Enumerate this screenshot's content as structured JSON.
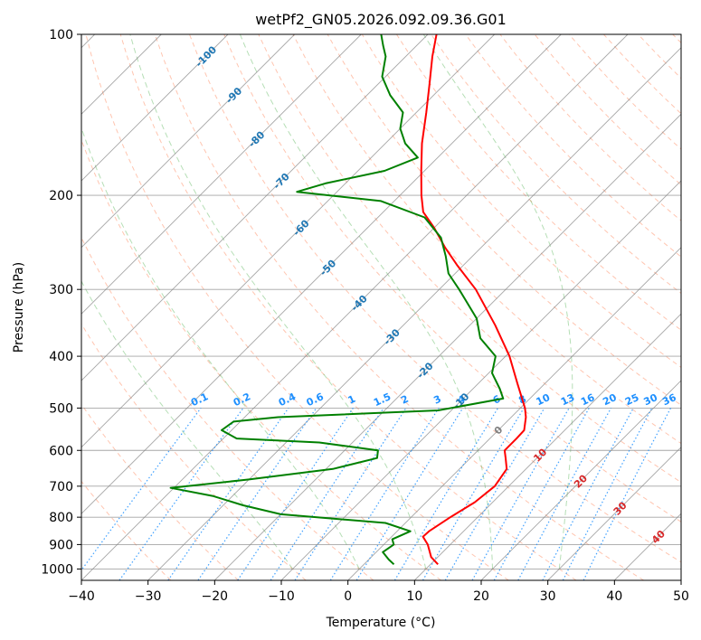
{
  "chart_data": {
    "type": "line",
    "subtype": "skew-T log-p diagram",
    "title": "wetPf2_GN05.2026.092.09.36.G01",
    "xlabel": "Temperature (°C)",
    "ylabel": "Pressure (hPa)",
    "xlim": [
      -40,
      50
    ],
    "ylim": [
      1050,
      100
    ],
    "y_scale": "log",
    "x_ticks": [
      -40,
      -30,
      -20,
      -10,
      0,
      10,
      20,
      30,
      40,
      50
    ],
    "x_tick_labels": [
      "−40",
      "−30",
      "−20",
      "−10",
      "0",
      "10",
      "20",
      "30",
      "40",
      "50"
    ],
    "y_ticks": [
      100,
      200,
      300,
      400,
      500,
      600,
      700,
      800,
      900,
      1000
    ],
    "y_tick_labels": [
      "100",
      "200",
      "300",
      "400",
      "500",
      "600",
      "700",
      "800",
      "900",
      "1000"
    ],
    "grid": true,
    "series": [
      {
        "color": "#ff0000",
        "points": [
          {
            "p": 980,
            "t": 11.1
          },
          {
            "p": 950,
            "t": 9.0
          },
          {
            "p": 900,
            "t": 6.6
          },
          {
            "p": 870,
            "t": 4.7
          },
          {
            "p": 850,
            "t": 4.8
          },
          {
            "p": 800,
            "t": 5.9
          },
          {
            "p": 750,
            "t": 7.3
          },
          {
            "p": 700,
            "t": 7.9
          },
          {
            "p": 650,
            "t": 7.1
          },
          {
            "p": 620,
            "t": 5.3
          },
          {
            "p": 600,
            "t": 4.0
          },
          {
            "p": 570,
            "t": 4.0
          },
          {
            "p": 550,
            "t": 3.9
          },
          {
            "p": 520,
            "t": 2.2
          },
          {
            "p": 500,
            "t": 0.7
          },
          {
            "p": 450,
            "t": -4.1
          },
          {
            "p": 400,
            "t": -9.4
          },
          {
            "p": 350,
            "t": -16.2
          },
          {
            "p": 300,
            "t": -24.5
          },
          {
            "p": 270,
            "t": -31.0
          },
          {
            "p": 250,
            "t": -35.5
          },
          {
            "p": 230,
            "t": -40.0
          },
          {
            "p": 215,
            "t": -44.0
          },
          {
            "p": 200,
            "t": -46.8
          },
          {
            "p": 180,
            "t": -50.5
          },
          {
            "p": 160,
            "t": -54.5
          },
          {
            "p": 140,
            "t": -58.5
          },
          {
            "p": 125,
            "t": -62.0
          },
          {
            "p": 110,
            "t": -66.0
          },
          {
            "p": 100,
            "t": -68.7
          }
        ]
      },
      {
        "color": "#008000",
        "points": [
          {
            "p": 980,
            "t": 4.5
          },
          {
            "p": 960,
            "t": 3.0
          },
          {
            "p": 930,
            "t": 1.0
          },
          {
            "p": 900,
            "t": 1.5
          },
          {
            "p": 880,
            "t": 0.5
          },
          {
            "p": 850,
            "t": 2.0
          },
          {
            "p": 820,
            "t": -3.0
          },
          {
            "p": 790,
            "t": -20.0
          },
          {
            "p": 760,
            "t": -27.0
          },
          {
            "p": 730,
            "t": -33.0
          },
          {
            "p": 705,
            "t": -40.5
          },
          {
            "p": 680,
            "t": -30.0
          },
          {
            "p": 650,
            "t": -19.0
          },
          {
            "p": 620,
            "t": -14.0
          },
          {
            "p": 600,
            "t": -15.0
          },
          {
            "p": 580,
            "t": -25.0
          },
          {
            "p": 570,
            "t": -38.0
          },
          {
            "p": 550,
            "t": -41.5
          },
          {
            "p": 530,
            "t": -41.0
          },
          {
            "p": 520,
            "t": -35.0
          },
          {
            "p": 505,
            "t": -12.0
          },
          {
            "p": 480,
            "t": -4.0
          },
          {
            "p": 460,
            "t": -6.0
          },
          {
            "p": 430,
            "t": -9.5
          },
          {
            "p": 400,
            "t": -11.5
          },
          {
            "p": 370,
            "t": -16.5
          },
          {
            "p": 340,
            "t": -20.0
          },
          {
            "p": 300,
            "t": -27.0
          },
          {
            "p": 280,
            "t": -31.0
          },
          {
            "p": 260,
            "t": -34.0
          },
          {
            "p": 240,
            "t": -37.5
          },
          {
            "p": 220,
            "t": -43.0
          },
          {
            "p": 205,
            "t": -52.0
          },
          {
            "p": 197,
            "t": -66.0
          },
          {
            "p": 190,
            "t": -63.0
          },
          {
            "p": 180,
            "t": -56.0
          },
          {
            "p": 170,
            "t": -53.0
          },
          {
            "p": 160,
            "t": -57.0
          },
          {
            "p": 150,
            "t": -60.0
          },
          {
            "p": 140,
            "t": -62.0
          },
          {
            "p": 130,
            "t": -66.5
          },
          {
            "p": 120,
            "t": -70.5
          },
          {
            "p": 110,
            "t": -73.0
          },
          {
            "p": 105,
            "t": -75.0
          },
          {
            "p": 100,
            "t": -77.0
          }
        ]
      }
    ],
    "isotherm_labels": [
      {
        "text": "-100",
        "p": 110,
        "color": "#1f77b4"
      },
      {
        "text": "-90",
        "p": 130,
        "color": "#1f77b4"
      },
      {
        "text": "-80",
        "p": 157,
        "color": "#1f77b4"
      },
      {
        "text": "-70",
        "p": 188,
        "color": "#1f77b4"
      },
      {
        "text": "-60",
        "p": 230,
        "color": "#1f77b4"
      },
      {
        "text": "-50",
        "p": 273,
        "color": "#1f77b4"
      },
      {
        "text": "-40",
        "p": 318,
        "color": "#1f77b4"
      },
      {
        "text": "-30",
        "p": 368,
        "color": "#1f77b4"
      },
      {
        "text": "-20",
        "p": 425,
        "color": "#1f77b4"
      },
      {
        "text": "-10",
        "p": 485,
        "color": "#1f77b4"
      },
      {
        "text": "0",
        "p": 550,
        "color": "#808080"
      },
      {
        "text": "10",
        "p": 612,
        "color": "#d62728"
      },
      {
        "text": "20",
        "p": 685,
        "color": "#d62728"
      },
      {
        "text": "30",
        "p": 770,
        "color": "#d62728"
      },
      {
        "text": "40",
        "p": 870,
        "color": "#d62728"
      }
    ],
    "mixing_ratio_labels": [
      "0.1",
      "0.2",
      "0.4",
      "0.6",
      "1",
      "1.5",
      "2",
      "3",
      "4",
      "6",
      "8",
      "10",
      "13",
      "16",
      "20",
      "25",
      "30",
      "36"
    ],
    "background_lines": {
      "isotherms": {
        "style": "solid",
        "color": "#808080"
      },
      "isobars": {
        "style": "solid",
        "color": "#808080"
      },
      "dry_adiabats": {
        "style": "dashed",
        "color": "#ff7f50"
      },
      "moist_adiabats": {
        "style": "dashed",
        "color": "#2ca02c"
      },
      "mixing_ratio": {
        "style": "dotted",
        "color": "#1e90ff"
      }
    }
  }
}
